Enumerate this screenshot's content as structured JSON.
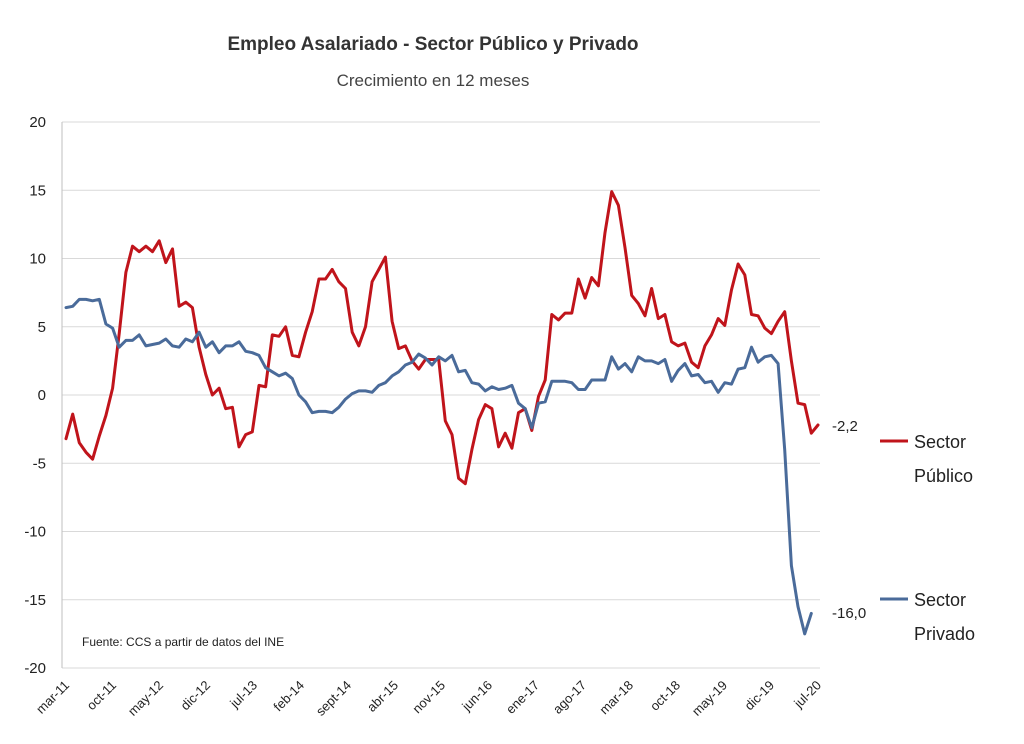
{
  "chart_data": {
    "type": "line",
    "title": "Empleo Asalariado - Sector  Público y Privado",
    "subtitle": "Crecimiento en 12 meses",
    "source": "Fuente: CCS a partir de datos del INE",
    "ylim": [
      -20,
      20
    ],
    "yticks": [
      "20",
      "15",
      "10",
      "5",
      "0",
      "-5",
      "-10",
      "-15",
      "-20"
    ],
    "ytick_values": [
      20,
      15,
      10,
      5,
      0,
      -5,
      -10,
      -15,
      -20
    ],
    "xtick_labels": [
      "mar-11",
      "oct-11",
      "may-12",
      "dic-12",
      "jul-13",
      "feb-14",
      "sept-14",
      "abr-15",
      "nov-15",
      "jun-16",
      "ene-17",
      "ago-17",
      "mar-18",
      "oct-18",
      "may-19",
      "dic-19",
      "jul-20"
    ],
    "grid": "horizontal",
    "legend_position": "right",
    "x_start": "mar-11",
    "x_end": "jul-20",
    "series": [
      {
        "name": "Sector Público",
        "legend_lines": [
          "Sector",
          "Público"
        ],
        "color": "#c0141b",
        "end_label": "-2,2",
        "values": [
          -3.2,
          -1.4,
          -3.5,
          -4.2,
          -4.7,
          -3.0,
          -1.5,
          0.5,
          4.5,
          9.0,
          10.9,
          10.5,
          10.9,
          10.5,
          11.3,
          9.7,
          10.7,
          6.5,
          6.8,
          6.4,
          3.5,
          1.5,
          0.0,
          0.5,
          -1.0,
          -0.9,
          -3.8,
          -2.9,
          -2.7,
          0.7,
          0.6,
          4.4,
          4.3,
          5.0,
          2.9,
          2.8,
          4.6,
          6.1,
          8.5,
          8.5,
          9.2,
          8.3,
          7.8,
          4.6,
          3.6,
          5.0,
          8.3,
          9.2,
          10.1,
          5.4,
          3.4,
          3.6,
          2.5,
          1.9,
          2.6,
          2.6,
          2.6,
          -1.9,
          -2.9,
          -6.1,
          -6.5,
          -4.0,
          -1.8,
          -0.7,
          -1.0,
          -3.8,
          -2.8,
          -3.9,
          -1.3,
          -1.0,
          -2.6,
          -0.1,
          1.1,
          5.9,
          5.5,
          6.0,
          6.0,
          8.5,
          7.1,
          8.6,
          8.0,
          11.9,
          14.9,
          13.9,
          10.8,
          7.3,
          6.7,
          5.8,
          7.8,
          5.6,
          5.9,
          3.9,
          3.6,
          3.8,
          2.4,
          2.0,
          3.6,
          4.4,
          5.6,
          5.1,
          7.7,
          9.6,
          8.8,
          5.9,
          5.8,
          4.9,
          4.5,
          5.4,
          6.1,
          2.5,
          -0.6,
          -0.7,
          -2.8,
          -2.2
        ]
      },
      {
        "name": "Sector Privado",
        "legend_lines": [
          "Sector",
          "Privado"
        ],
        "color": "#4a6b9a",
        "end_label": "-16,0",
        "values": [
          6.4,
          6.5,
          7.0,
          7.0,
          6.9,
          7.0,
          5.2,
          4.9,
          3.5,
          4.0,
          4.0,
          4.4,
          3.6,
          3.7,
          3.8,
          4.1,
          3.6,
          3.5,
          4.1,
          3.9,
          4.6,
          3.5,
          3.9,
          3.1,
          3.6,
          3.6,
          3.9,
          3.2,
          3.1,
          2.9,
          2.0,
          1.7,
          1.4,
          1.6,
          1.2,
          0.0,
          -0.5,
          -1.3,
          -1.2,
          -1.2,
          -1.3,
          -0.9,
          -0.3,
          0.1,
          0.3,
          0.3,
          0.2,
          0.7,
          0.9,
          1.4,
          1.7,
          2.2,
          2.4,
          3.0,
          2.7,
          2.2,
          2.8,
          2.5,
          2.9,
          1.7,
          1.8,
          0.9,
          0.8,
          0.3,
          0.6,
          0.4,
          0.5,
          0.7,
          -0.6,
          -1.0,
          -2.4,
          -0.6,
          -0.5,
          1.0,
          1.0,
          1.0,
          0.9,
          0.4,
          0.4,
          1.1,
          1.1,
          1.1,
          2.8,
          1.9,
          2.3,
          1.7,
          2.8,
          2.5,
          2.5,
          2.3,
          2.6,
          1.0,
          1.8,
          2.3,
          1.4,
          1.5,
          0.9,
          1.0,
          0.2,
          0.9,
          0.8,
          1.9,
          2.0,
          3.5,
          2.4,
          2.8,
          2.9,
          2.3,
          -4.0,
          -12.5,
          -15.5,
          -17.5,
          -16.0
        ]
      }
    ]
  }
}
